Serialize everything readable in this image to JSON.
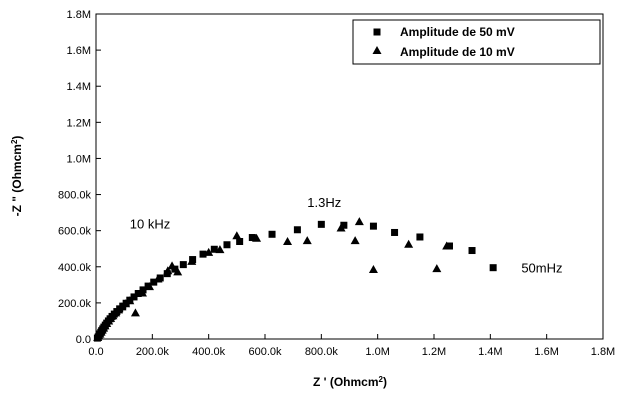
{
  "chart_data": {
    "type": "scatter",
    "xlabel": "Z ' (Ohmcm",
    "xlabel_sup": "2",
    "ylabel": "-Z \" (Ohmcm",
    "ylabel_sup": "2",
    "xlim": [
      0,
      1800000
    ],
    "ylim": [
      0,
      1800000
    ],
    "x_ticks": [
      {
        "value": 0,
        "label": "0.0"
      },
      {
        "value": 200000,
        "label": "200.0k"
      },
      {
        "value": 400000,
        "label": "400.0k"
      },
      {
        "value": 600000,
        "label": "600.0k"
      },
      {
        "value": 800000,
        "label": "800.0k"
      },
      {
        "value": 1000000,
        "label": "1.0M"
      },
      {
        "value": 1200000,
        "label": "1.2M"
      },
      {
        "value": 1400000,
        "label": "1.4M"
      },
      {
        "value": 1600000,
        "label": "1.6M"
      },
      {
        "value": 1800000,
        "label": "1.8M"
      }
    ],
    "y_ticks": [
      {
        "value": 0,
        "label": "0.0"
      },
      {
        "value": 200000,
        "label": "200.0k"
      },
      {
        "value": 400000,
        "label": "400.0k"
      },
      {
        "value": 600000,
        "label": "600.0k"
      },
      {
        "value": 800000,
        "label": "800.0k"
      },
      {
        "value": 1000000,
        "label": "1.0M"
      },
      {
        "value": 1200000,
        "label": "1.2M"
      },
      {
        "value": 1400000,
        "label": "1.4M"
      },
      {
        "value": 1600000,
        "label": "1.6M"
      },
      {
        "value": 1800000,
        "label": "1.8M"
      }
    ],
    "grid": false,
    "legend_position": "top-right",
    "series": [
      {
        "name": "Amplitude de 50 mV",
        "marker": "square",
        "x": [
          5000,
          8000,
          11000,
          14000,
          17000,
          20000,
          24000,
          28000,
          33000,
          38000,
          44000,
          50000,
          57000,
          65000,
          74000,
          84000,
          95000,
          107000,
          120000,
          135000,
          150000,
          167000,
          185000,
          205000,
          228000,
          253000,
          280000,
          310000,
          343000,
          380000,
          420000,
          465000,
          510000,
          555000,
          625000,
          715000,
          800000,
          880000,
          985000,
          1060000,
          1150000,
          1255000,
          1335000,
          1410000
        ],
        "y": [
          5000,
          12000,
          20000,
          28000,
          37000,
          46000,
          56000,
          66000,
          77000,
          88000,
          100000,
          112000,
          125000,
          138000,
          152000,
          167000,
          182000,
          198000,
          215000,
          233000,
          252000,
          272000,
          293000,
          315000,
          338000,
          362000,
          387000,
          412000,
          440000,
          470000,
          497000,
          522000,
          540000,
          562000,
          580000,
          605000,
          635000,
          630000,
          625000,
          590000,
          565000,
          515000,
          490000,
          395000
        ]
      },
      {
        "name": "Amplitude de 10 mV",
        "marker": "triangle",
        "x": [
          6000,
          10000,
          14000,
          18000,
          22000,
          27000,
          32000,
          38000,
          45000,
          52000,
          60000,
          70000,
          80000,
          92000,
          105000,
          120000,
          140000,
          165000,
          190000,
          220000,
          255000,
          270000,
          290000,
          340000,
          400000,
          440000,
          500000,
          570000,
          680000,
          750000,
          870000,
          920000,
          935000,
          985000,
          1110000,
          1210000,
          1245000
        ],
        "y": [
          8000,
          17000,
          27000,
          38000,
          49000,
          60000,
          73000,
          86000,
          100000,
          114000,
          129000,
          145000,
          161000,
          178000,
          195000,
          212000,
          145000,
          255000,
          290000,
          332000,
          378000,
          405000,
          372000,
          430000,
          480000,
          495000,
          572000,
          558000,
          540000,
          545000,
          615000,
          545000,
          650000,
          385000,
          525000,
          390000,
          515000
        ]
      }
    ],
    "annotations": [
      {
        "text": "10 kHz",
        "x": 120000,
        "y": 640000
      },
      {
        "text": "1.3Hz",
        "x": 750000,
        "y": 760000
      },
      {
        "text": "50mHz",
        "x": 1510000,
        "y": 395000
      }
    ]
  }
}
